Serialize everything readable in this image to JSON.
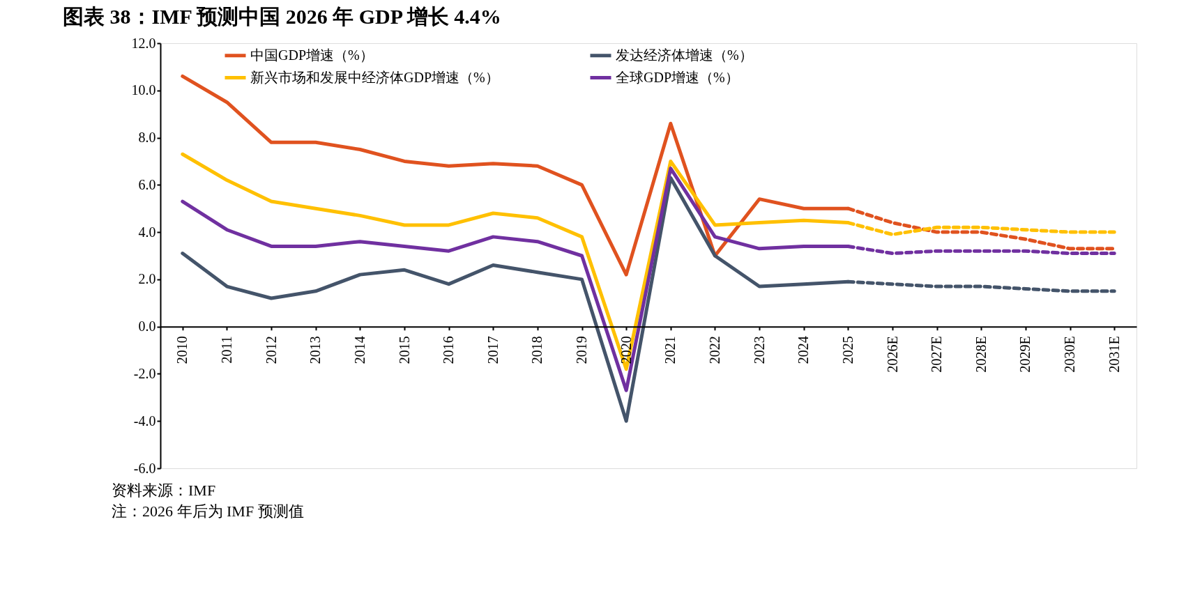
{
  "chart_data": {
    "type": "line",
    "title": "图表 38：IMF 预测中国 2026 年 GDP 增长 4.4%",
    "categories": [
      "2010",
      "2011",
      "2012",
      "2013",
      "2014",
      "2015",
      "2016",
      "2017",
      "2018",
      "2019",
      "2020",
      "2021",
      "2022",
      "2023",
      "2024",
      "2025",
      "2026E",
      "2027E",
      "2028E",
      "2029E",
      "2030E",
      "2031E"
    ],
    "series": [
      {
        "name": "中国GDP增速（%）",
        "color": "#e0521f",
        "line_style": "solid",
        "values": [
          10.6,
          9.5,
          7.8,
          7.8,
          7.5,
          7.0,
          6.8,
          6.9,
          6.8,
          6.0,
          2.2,
          8.6,
          3.0,
          5.4,
          5.0,
          5.0,
          null,
          null,
          null,
          null,
          null,
          null
        ]
      },
      {
        "name": "新兴市场和发展中经济体GDP增速（%）",
        "color": "#ffc000",
        "line_style": "solid",
        "values": [
          7.3,
          6.2,
          5.3,
          5.0,
          4.7,
          4.3,
          4.3,
          4.8,
          4.6,
          3.8,
          -1.8,
          7.0,
          4.3,
          4.4,
          4.5,
          4.4,
          null,
          null,
          null,
          null,
          null,
          null
        ]
      },
      {
        "name": "发达经济体增速（%）",
        "color": "#44546a",
        "line_style": "solid",
        "values": [
          3.1,
          1.7,
          1.2,
          1.5,
          2.2,
          2.4,
          1.8,
          2.6,
          2.3,
          2.0,
          -4.0,
          6.3,
          3.0,
          1.7,
          1.8,
          1.9,
          null,
          null,
          null,
          null,
          null,
          null
        ]
      },
      {
        "name": "全球GDP增速（%）",
        "color": "#7030a0",
        "line_style": "solid",
        "values": [
          5.3,
          4.1,
          3.4,
          3.4,
          3.6,
          3.4,
          3.2,
          3.8,
          3.6,
          3.0,
          -2.7,
          6.7,
          3.8,
          3.3,
          3.4,
          3.4,
          null,
          null,
          null,
          null,
          null,
          null
        ]
      },
      {
        "color": "#e0521f",
        "line_style": "dashed",
        "values": [
          null,
          null,
          null,
          null,
          null,
          null,
          null,
          null,
          null,
          null,
          null,
          null,
          null,
          null,
          null,
          5.0,
          4.4,
          4.0,
          4.0,
          3.7,
          3.3,
          3.3
        ]
      },
      {
        "color": "#ffc000",
        "line_style": "dashed",
        "values": [
          null,
          null,
          null,
          null,
          null,
          null,
          null,
          null,
          null,
          null,
          null,
          null,
          null,
          null,
          null,
          4.4,
          3.9,
          4.2,
          4.2,
          4.1,
          4.0,
          4.0
        ]
      },
      {
        "color": "#44546a",
        "line_style": "dashed",
        "values": [
          null,
          null,
          null,
          null,
          null,
          null,
          null,
          null,
          null,
          null,
          null,
          null,
          null,
          null,
          null,
          1.9,
          1.8,
          1.7,
          1.7,
          1.6,
          1.5,
          1.5
        ]
      },
      {
        "color": "#7030a0",
        "line_style": "dashed",
        "values": [
          null,
          null,
          null,
          null,
          null,
          null,
          null,
          null,
          null,
          null,
          null,
          null,
          null,
          null,
          null,
          3.4,
          3.1,
          3.2,
          3.2,
          3.2,
          3.1,
          3.1
        ]
      }
    ],
    "ylim": [
      -6,
      12
    ],
    "yticks": [
      {
        "value": -6,
        "label": "-6.0"
      },
      {
        "value": -4,
        "label": "-4.0"
      },
      {
        "value": -2,
        "label": "-2.0"
      },
      {
        "value": 0,
        "label": "0.0"
      },
      {
        "value": 2,
        "label": "2.0"
      },
      {
        "value": 4,
        "label": "4.0"
      },
      {
        "value": 6,
        "label": "6.0"
      },
      {
        "value": 8,
        "label": "8.0"
      },
      {
        "value": 10,
        "label": "10.0"
      },
      {
        "value": 12,
        "label": "12.0"
      }
    ],
    "grid": false,
    "legend": "top",
    "marker": "none",
    "annotations": [
      "资料来源：IMF",
      "注：2026 年后为 IMF 预测值"
    ]
  }
}
